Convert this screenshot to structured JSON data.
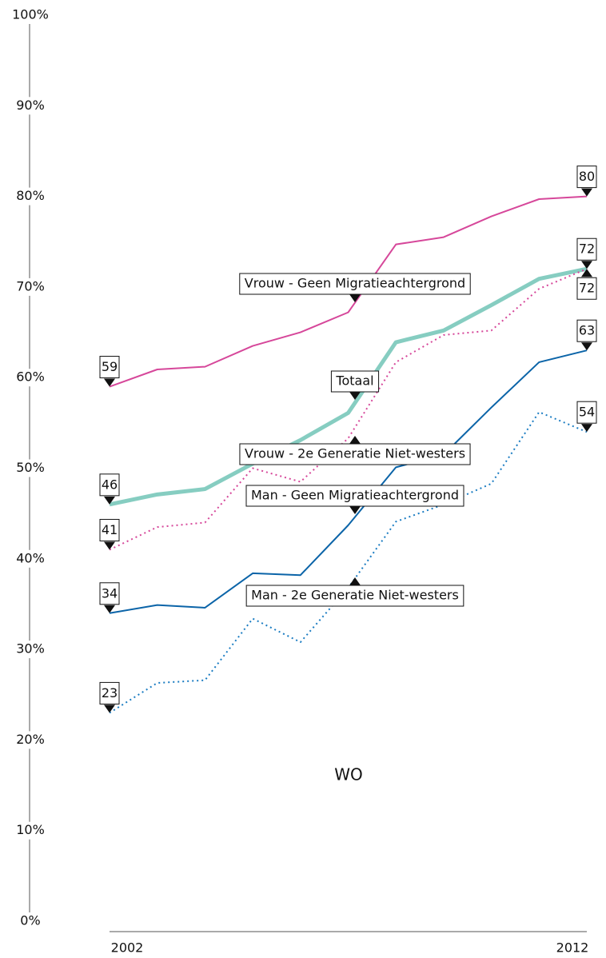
{
  "chart_data": {
    "type": "line",
    "subtitle": "WO",
    "x": [
      2002,
      2003,
      2004,
      2005,
      2006,
      2007,
      2008,
      2009,
      2010,
      2011,
      2012
    ],
    "xlim": [
      2002,
      2012
    ],
    "xticks": [
      2002,
      2012
    ],
    "ylim": [
      0,
      100
    ],
    "yticks": [
      {
        "value": 0,
        "label": "0%"
      },
      {
        "value": 10,
        "label": "10%"
      },
      {
        "value": 20,
        "label": "20%"
      },
      {
        "value": 30,
        "label": "30%"
      },
      {
        "value": 40,
        "label": "40%"
      },
      {
        "value": 50,
        "label": "50%"
      },
      {
        "value": 60,
        "label": "60%"
      },
      {
        "value": 70,
        "label": "70%"
      },
      {
        "value": 80,
        "label": "80%"
      },
      {
        "value": 90,
        "label": "90%"
      },
      {
        "value": 100,
        "label": "100%"
      }
    ],
    "series": [
      {
        "name": "Vrouw - Geen Migratieachtergrond",
        "color": "#d6479a",
        "style": "solid",
        "values": [
          59,
          60.9,
          61.2,
          63.5,
          65.0,
          67.2,
          74.7,
          75.5,
          77.8,
          79.7,
          80
        ]
      },
      {
        "name": "Totaal",
        "color": "#86cdc1",
        "style": "thick",
        "values": [
          46,
          47.1,
          47.7,
          50.5,
          53.1,
          56.1,
          63.9,
          65.2,
          68.0,
          70.9,
          72
        ]
      },
      {
        "name": "Vrouw - 2e Generatie Niet-westers",
        "color": "#d6479a",
        "style": "dotted",
        "values": [
          41,
          43.5,
          44.0,
          50.0,
          48.5,
          53.3,
          61.7,
          64.7,
          65.2,
          69.8,
          72
        ]
      },
      {
        "name": "Man - Geen Migratieachtergrond",
        "color": "#0b64a8",
        "style": "solid",
        "values": [
          34,
          34.9,
          34.6,
          38.4,
          38.2,
          43.7,
          50.1,
          51.5,
          56.7,
          61.7,
          63
        ]
      },
      {
        "name": "Man - 2e Generatie Niet-westers",
        "color": "#1a7cc2",
        "style": "dotted",
        "values": [
          23,
          26.3,
          26.6,
          33.4,
          30.8,
          36.8,
          44.1,
          46.0,
          48.3,
          56.2,
          54
        ]
      }
    ]
  }
}
